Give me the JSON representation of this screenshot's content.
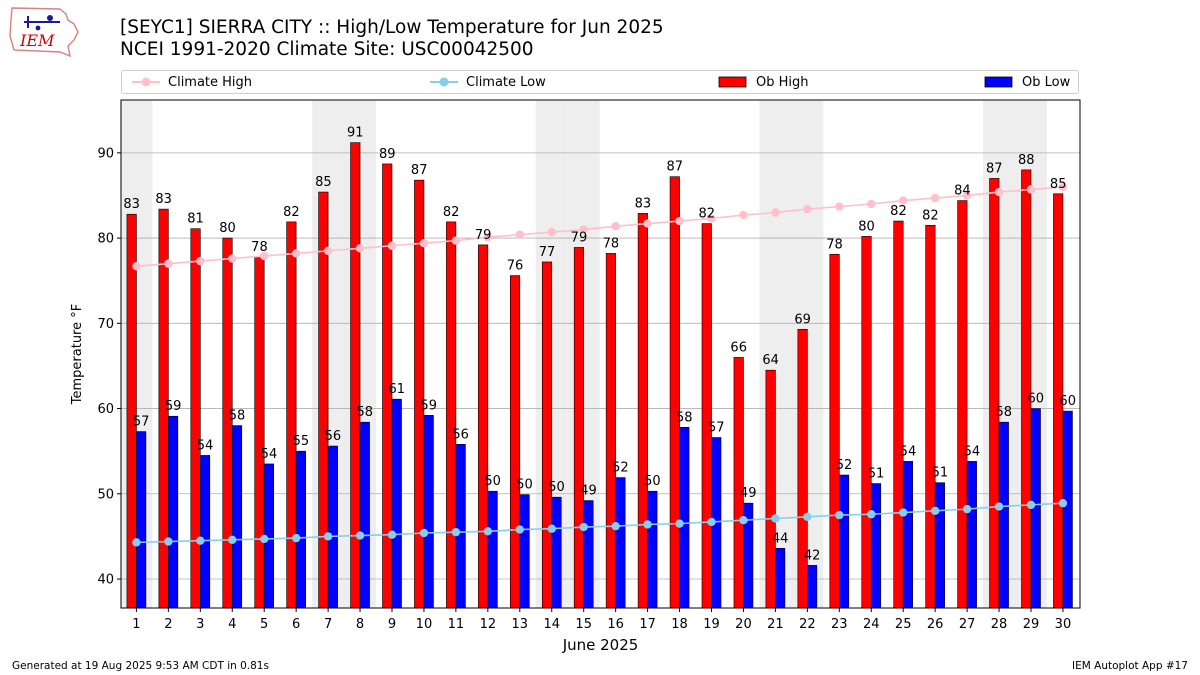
{
  "header": {
    "logo_text": "IEM",
    "title_line1": "[SEYC1] SIERRA CITY :: High/Low Temperature for Jun 2025",
    "title_line2": "NCEI 1991-2020 Climate Site: USC00042500"
  },
  "legend": {
    "climate_high": "Climate High",
    "climate_low": "Climate Low",
    "ob_high": "Ob High",
    "ob_low": "Ob Low"
  },
  "colors": {
    "climate_high": "#ffc0cb",
    "climate_low": "#87ceeb",
    "ob_high": "#ff0000",
    "ob_low": "#0000ff",
    "weekend_band": "#eeeeee",
    "grid": "#b0b0b0"
  },
  "footer": {
    "generated": "Generated at 19 Aug 2025 9:53 AM CDT in 0.81s",
    "app": "IEM Autoplot App #17"
  },
  "chart_data": {
    "type": "bar",
    "title": "[SEYC1] SIERRA CITY :: High/Low Temperature for Jun 2025",
    "subtitle": "NCEI 1991-2020 Climate Site: USC00042500",
    "xlabel": "June 2025",
    "ylabel": "Temperature °F",
    "ylim": [
      36.6,
      96.2
    ],
    "yticks": [
      40,
      50,
      60,
      70,
      80,
      90
    ],
    "grid": true,
    "legend_position": "top",
    "categories": [
      1,
      2,
      3,
      4,
      5,
      6,
      7,
      8,
      9,
      10,
      11,
      12,
      13,
      14,
      15,
      16,
      17,
      18,
      19,
      20,
      21,
      22,
      23,
      24,
      25,
      26,
      27,
      28,
      29,
      30
    ],
    "shaded_days": [
      1,
      7,
      8,
      14,
      15,
      21,
      22,
      28,
      29
    ],
    "series": [
      {
        "name": "Ob High",
        "kind": "bar",
        "values": [
          82.8,
          83.4,
          81.1,
          80.0,
          77.8,
          81.9,
          85.4,
          91.2,
          88.7,
          86.8,
          81.9,
          79.2,
          75.6,
          77.2,
          78.9,
          78.2,
          82.9,
          87.2,
          81.7,
          66.0,
          64.5,
          69.3,
          78.1,
          80.2,
          82.0,
          81.5,
          84.4,
          87.0,
          88.0,
          85.2
        ],
        "labels": [
          "83",
          "83",
          "81",
          "80",
          "78",
          "82",
          "85",
          "91",
          "89",
          "87",
          "82",
          "79",
          "76",
          "77",
          "79",
          "78",
          "83",
          "87",
          "82",
          "66",
          "64",
          "69",
          "78",
          "80",
          "82",
          "82",
          "84",
          "87",
          "88",
          "85"
        ]
      },
      {
        "name": "Ob Low",
        "kind": "bar",
        "values": [
          57.3,
          59.1,
          54.5,
          58.0,
          53.5,
          55.0,
          55.6,
          58.4,
          61.1,
          59.2,
          55.8,
          50.3,
          49.9,
          49.6,
          49.2,
          51.9,
          50.3,
          57.8,
          56.6,
          48.9,
          43.6,
          41.6,
          52.2,
          51.2,
          53.8,
          51.3,
          53.8,
          58.4,
          60.0,
          59.7
        ],
        "labels": [
          "57",
          "59",
          "54",
          "58",
          "54",
          "55",
          "56",
          "58",
          "61",
          "59",
          "56",
          "50",
          "50",
          "50",
          "49",
          "52",
          "50",
          "58",
          "57",
          "49",
          "44",
          "42",
          "52",
          "51",
          "54",
          "51",
          "54",
          "58",
          "60",
          "60"
        ]
      },
      {
        "name": "Climate High",
        "kind": "line",
        "values": [
          76.7,
          77.0,
          77.3,
          77.6,
          77.9,
          78.2,
          78.5,
          78.8,
          79.1,
          79.4,
          79.7,
          80.1,
          80.4,
          80.7,
          81.0,
          81.4,
          81.7,
          82.0,
          82.3,
          82.7,
          83.0,
          83.4,
          83.7,
          84.0,
          84.4,
          84.7,
          85.0,
          85.4,
          85.7,
          86.0
        ]
      },
      {
        "name": "Climate Low",
        "kind": "line",
        "values": [
          44.3,
          44.4,
          44.5,
          44.6,
          44.7,
          44.8,
          45.0,
          45.1,
          45.2,
          45.4,
          45.5,
          45.6,
          45.8,
          45.9,
          46.1,
          46.2,
          46.4,
          46.5,
          46.7,
          46.9,
          47.1,
          47.3,
          47.5,
          47.6,
          47.8,
          48.0,
          48.2,
          48.5,
          48.7,
          48.9
        ]
      }
    ]
  }
}
